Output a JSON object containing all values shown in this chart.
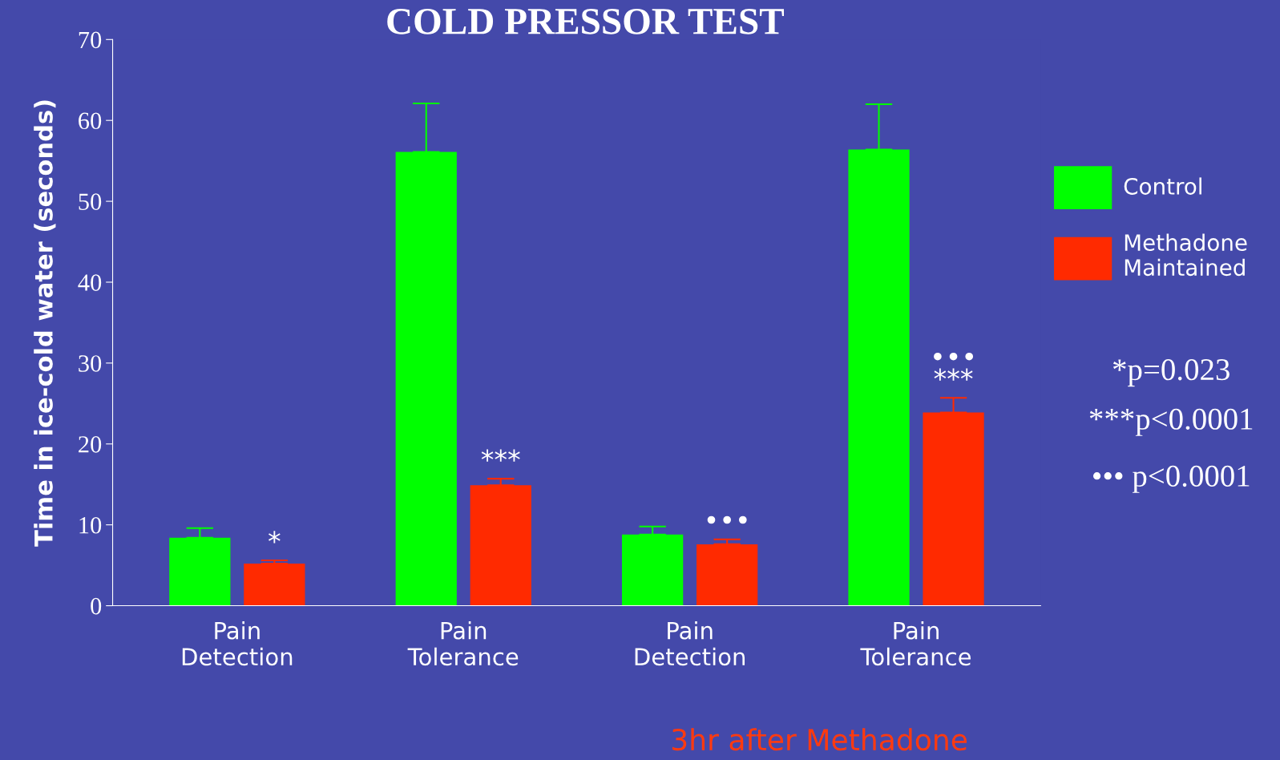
{
  "chart_data": {
    "type": "bar",
    "title": "COLD PRESSOR TEST",
    "ylabel": "Time in ice-cold water (seconds)",
    "categories": [
      "Pain\nDetection",
      "Pain\nTolerance",
      "Pain\nDetection",
      "Pain\nTolerance"
    ],
    "series": [
      {
        "name": "Control",
        "color": "#00ff00",
        "values": [
          8.4,
          56.1,
          8.8,
          56.4
        ],
        "errors": [
          [
            8.4,
            9.6
          ],
          [
            56.1,
            62.1
          ],
          [
            8.8,
            9.8
          ],
          [
            56.4,
            62.0
          ]
        ]
      },
      {
        "name": "Methadone\nMaintained",
        "color": "#ff2a00",
        "values": [
          5.2,
          14.9,
          7.6,
          23.9
        ],
        "errors": [
          [
            5.2,
            5.6
          ],
          [
            14.9,
            15.7
          ],
          [
            7.6,
            8.2
          ],
          [
            23.9,
            25.7
          ]
        ],
        "value_labels": [
          "*",
          "***",
          "•••",
          "•••\n***"
        ]
      }
    ],
    "ylim": [
      0,
      70
    ],
    "yticks": [
      0,
      10,
      20,
      30,
      40,
      50,
      60,
      70
    ],
    "grid": false,
    "legend": "right",
    "annotations": [
      "*p=0.023",
      "***p<0.0001",
      "••• p<0.0001",
      "3hr after Methadone"
    ]
  }
}
